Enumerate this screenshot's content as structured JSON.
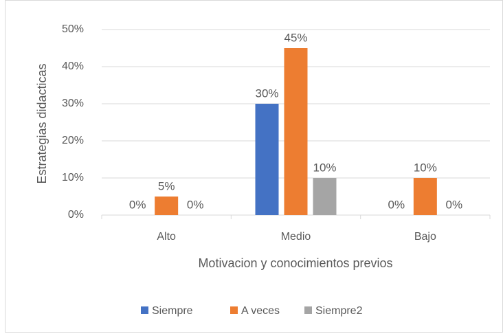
{
  "chart_data": {
    "type": "bar",
    "x_label": "Motivacion y conocimientos previos",
    "y_label": "Estrategias didacticas",
    "categories": [
      "Alto",
      "Medio",
      "Bajo"
    ],
    "series": [
      {
        "name": "Siempre",
        "color": "#4472c4",
        "values": [
          0,
          30,
          0
        ],
        "value_labels": [
          "0%",
          "30%",
          "0%"
        ]
      },
      {
        "name": "A veces",
        "color": "#ed7d31",
        "values": [
          5,
          45,
          10
        ],
        "value_labels": [
          "5%",
          "45%",
          "10%"
        ]
      },
      {
        "name": "Siempre2",
        "color": "#a5a5a5",
        "values": [
          0,
          10,
          0
        ],
        "value_labels": [
          "0%",
          "10%",
          "0%"
        ]
      }
    ],
    "ylim": [
      0,
      50
    ],
    "yticks": [
      {
        "value": 0,
        "label": "0%"
      },
      {
        "value": 10,
        "label": "10%"
      },
      {
        "value": 20,
        "label": "20%"
      },
      {
        "value": 30,
        "label": "30%"
      },
      {
        "value": 40,
        "label": "40%"
      },
      {
        "value": 50,
        "label": "50%"
      }
    ],
    "grid": true,
    "legend": "bottom"
  }
}
